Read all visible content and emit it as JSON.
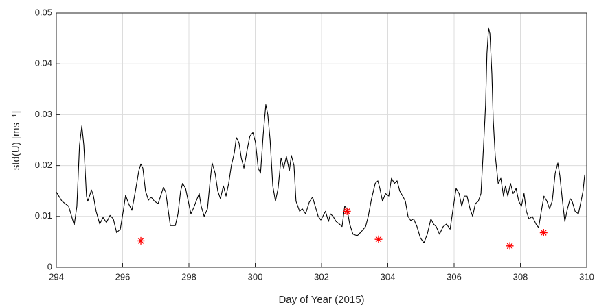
{
  "chart_data": {
    "type": "line",
    "xlabel": "Day of Year (2015)",
    "ylabel": "std(U) [ms⁻¹]",
    "xlim": [
      294,
      310
    ],
    "xticks": [
      294,
      296,
      298,
      300,
      302,
      304,
      306,
      308,
      310
    ],
    "ylim": [
      0,
      0.05
    ],
    "yticks": [
      0,
      0.01,
      0.02,
      0.03,
      0.04,
      0.05
    ],
    "grid": true,
    "series": [
      {
        "type": "line",
        "color": "#000000",
        "x": [
          294.0,
          294.17,
          294.37,
          294.54,
          294.62,
          294.7,
          294.77,
          294.83,
          294.91,
          294.95,
          295.06,
          295.12,
          295.2,
          295.31,
          295.41,
          295.51,
          295.62,
          295.72,
          295.82,
          295.93,
          296.03,
          296.09,
          296.18,
          296.28,
          296.4,
          296.49,
          296.55,
          296.61,
          296.69,
          296.78,
          296.86,
          296.96,
          297.07,
          297.17,
          297.23,
          297.3,
          297.38,
          297.44,
          297.59,
          297.67,
          297.75,
          297.81,
          297.9,
          297.98,
          298.06,
          298.15,
          298.23,
          298.31,
          298.37,
          298.46,
          298.56,
          298.64,
          298.7,
          298.79,
          298.87,
          298.95,
          299.04,
          299.12,
          299.2,
          299.28,
          299.37,
          299.43,
          299.51,
          299.58,
          299.66,
          299.76,
          299.84,
          299.93,
          300.01,
          300.09,
          300.16,
          300.24,
          300.32,
          300.38,
          300.45,
          300.53,
          300.61,
          300.69,
          300.78,
          300.86,
          300.94,
          301.03,
          301.09,
          301.17,
          301.23,
          301.34,
          301.42,
          301.52,
          301.63,
          301.73,
          301.81,
          301.9,
          301.98,
          302.04,
          302.12,
          302.21,
          302.27,
          302.35,
          302.44,
          302.54,
          302.62,
          302.7,
          302.77,
          302.85,
          302.95,
          303.08,
          303.2,
          303.33,
          303.41,
          303.51,
          303.62,
          303.7,
          303.76,
          303.84,
          303.93,
          304.03,
          304.11,
          304.2,
          304.28,
          304.36,
          304.45,
          304.53,
          304.61,
          304.69,
          304.78,
          304.88,
          304.98,
          305.09,
          305.19,
          305.3,
          305.38,
          305.46,
          305.56,
          305.67,
          305.77,
          305.88,
          305.98,
          306.06,
          306.15,
          306.23,
          306.31,
          306.39,
          306.48,
          306.56,
          306.64,
          306.73,
          306.81,
          306.89,
          306.95,
          306.99,
          307.04,
          307.08,
          307.14,
          307.18,
          307.24,
          307.33,
          307.41,
          307.49,
          307.55,
          307.62,
          307.7,
          307.78,
          307.87,
          307.95,
          308.03,
          308.11,
          308.18,
          308.26,
          308.36,
          308.47,
          308.55,
          308.63,
          308.71,
          308.8,
          308.88,
          308.96,
          309.05,
          309.13,
          309.19,
          309.27,
          309.34,
          309.42,
          309.5,
          309.56,
          309.65,
          309.75,
          309.83,
          309.89,
          309.94
        ],
        "values": [
          0.0148,
          0.013,
          0.012,
          0.0083,
          0.012,
          0.024,
          0.0278,
          0.024,
          0.014,
          0.013,
          0.0152,
          0.014,
          0.011,
          0.0085,
          0.0098,
          0.0088,
          0.0102,
          0.0095,
          0.0068,
          0.0075,
          0.0115,
          0.0142,
          0.0125,
          0.0112,
          0.0155,
          0.019,
          0.0203,
          0.0195,
          0.015,
          0.0132,
          0.0138,
          0.013,
          0.0125,
          0.0145,
          0.0157,
          0.0148,
          0.011,
          0.0082,
          0.0082,
          0.0105,
          0.015,
          0.0165,
          0.0155,
          0.013,
          0.0105,
          0.0118,
          0.0132,
          0.0145,
          0.012,
          0.01,
          0.0115,
          0.017,
          0.0205,
          0.0185,
          0.015,
          0.0135,
          0.016,
          0.014,
          0.0165,
          0.02,
          0.0225,
          0.0255,
          0.0245,
          0.0215,
          0.0195,
          0.0232,
          0.0258,
          0.0265,
          0.0245,
          0.0195,
          0.0185,
          0.026,
          0.032,
          0.03,
          0.025,
          0.016,
          0.013,
          0.0155,
          0.0215,
          0.0195,
          0.0218,
          0.019,
          0.022,
          0.02,
          0.013,
          0.011,
          0.0115,
          0.0105,
          0.0128,
          0.0138,
          0.012,
          0.01,
          0.0093,
          0.01,
          0.011,
          0.009,
          0.0105,
          0.01,
          0.009,
          0.0085,
          0.008,
          0.012,
          0.0115,
          0.0085,
          0.0065,
          0.0062,
          0.007,
          0.008,
          0.01,
          0.0135,
          0.0165,
          0.017,
          0.0155,
          0.013,
          0.0145,
          0.014,
          0.0175,
          0.0165,
          0.017,
          0.015,
          0.014,
          0.013,
          0.01,
          0.0092,
          0.0095,
          0.008,
          0.0058,
          0.0048,
          0.0065,
          0.0095,
          0.0085,
          0.008,
          0.0065,
          0.008,
          0.0085,
          0.0075,
          0.012,
          0.0155,
          0.0145,
          0.012,
          0.014,
          0.014,
          0.0115,
          0.01,
          0.0125,
          0.013,
          0.0145,
          0.024,
          0.032,
          0.042,
          0.047,
          0.046,
          0.038,
          0.029,
          0.022,
          0.0165,
          0.0175,
          0.014,
          0.016,
          0.014,
          0.0165,
          0.0145,
          0.0155,
          0.013,
          0.012,
          0.0145,
          0.011,
          0.0095,
          0.01,
          0.0085,
          0.0078,
          0.011,
          0.014,
          0.013,
          0.0115,
          0.013,
          0.0185,
          0.0205,
          0.018,
          0.013,
          0.009,
          0.0115,
          0.0135,
          0.013,
          0.011,
          0.0105,
          0.013,
          0.015,
          0.0182
        ]
      },
      {
        "type": "scatter",
        "marker": "*",
        "color": "#ff0000",
        "x": [
          296.55,
          302.77,
          303.72,
          307.68,
          308.7
        ],
        "values": [
          0.0052,
          0.011,
          0.0055,
          0.0042,
          0.0068
        ]
      }
    ]
  }
}
